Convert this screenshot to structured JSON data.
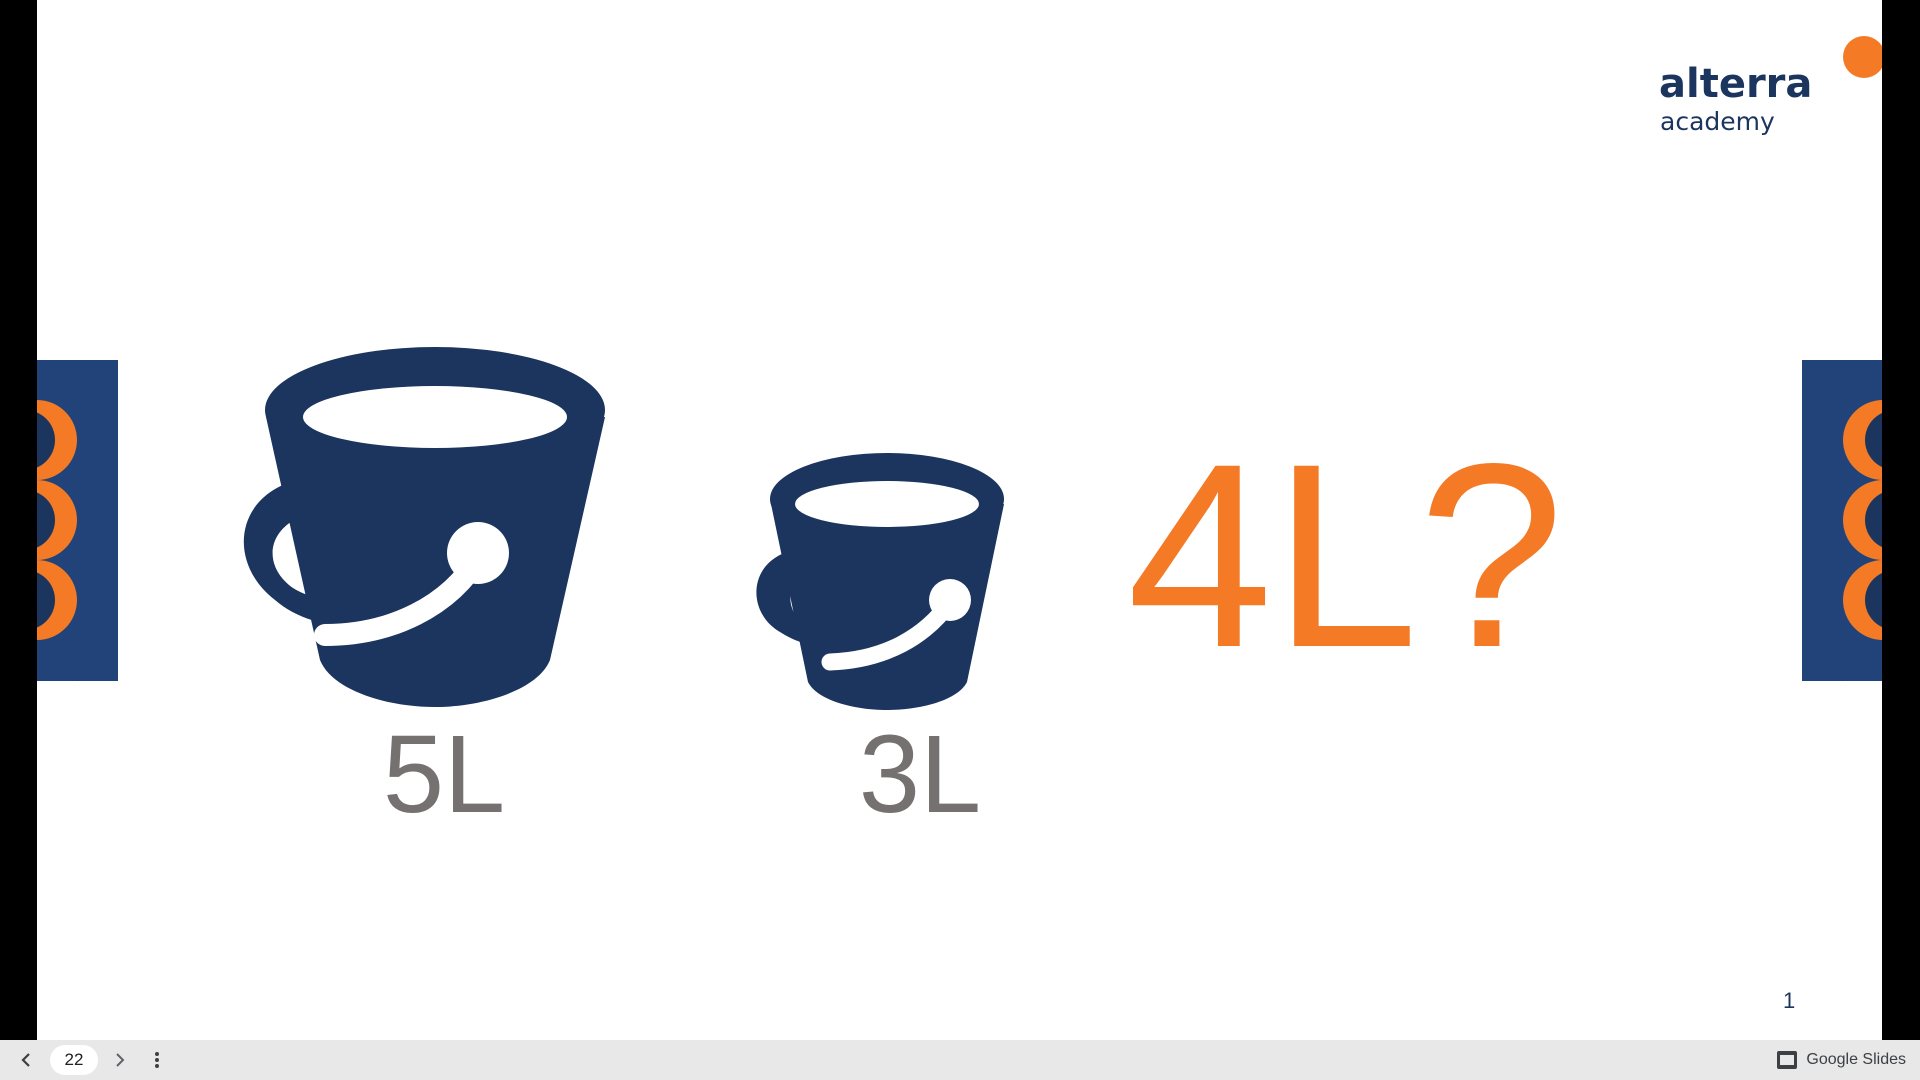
{
  "slide": {
    "logo": {
      "name": "alterra",
      "subtitle": "academy"
    },
    "buckets": [
      {
        "label": "5L"
      },
      {
        "label": "3L"
      }
    ],
    "question": "4L?",
    "slide_number": "1"
  },
  "toolbar": {
    "page_number": "22",
    "brand": "Google Slides"
  },
  "colors": {
    "navy": "#1c355e",
    "orange": "#f47a26",
    "gray_text": "#767171"
  }
}
